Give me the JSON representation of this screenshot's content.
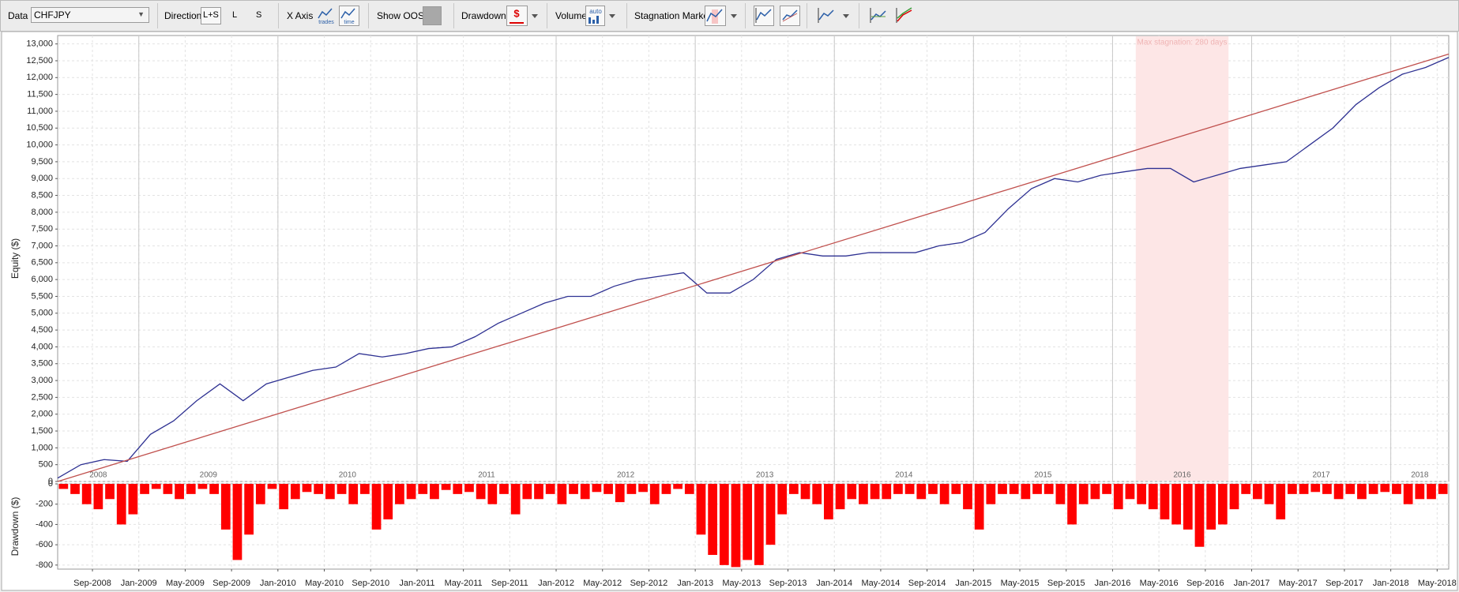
{
  "toolbar": {
    "data_label": "Data",
    "data_value": "CHFJPY",
    "direction_label": "Direction",
    "direction_options": [
      "L+S",
      "L",
      "S"
    ],
    "x_axis_label": "X Axis",
    "x_axis_options": [
      "trades",
      "time"
    ],
    "show_oos_label": "Show OOS",
    "drawdown_label": "Drawdown",
    "drawdown_icon": "$",
    "volume_label": "Volume",
    "volume_icon": "auto",
    "stagnation_label": "Stagnation Marker"
  },
  "chart_data": [
    {
      "type": "line",
      "y_label": "Equity ($)",
      "grid": true,
      "xlim": [
        "2008-06",
        "2018-06"
      ],
      "ylim": [
        0,
        13250
      ],
      "yticks": [
        0,
        500,
        {
          "value": 1000,
          "label": "1,000"
        },
        {
          "value": 1500,
          "label": "1,500"
        },
        {
          "value": 2000,
          "label": "2,000"
        },
        {
          "value": 2500,
          "label": "2,500"
        },
        {
          "value": 3000,
          "label": "3,000"
        },
        {
          "value": 3500,
          "label": "3,500"
        },
        {
          "value": 4000,
          "label": "4,000"
        },
        {
          "value": 4500,
          "label": "4,500"
        },
        {
          "value": 5000,
          "label": "5,000"
        },
        {
          "value": 5500,
          "label": "5,500"
        },
        {
          "value": 6000,
          "label": "6,000"
        },
        {
          "value": 6500,
          "label": "6,500"
        },
        {
          "value": 7000,
          "label": "7,000"
        },
        {
          "value": 7500,
          "label": "7,500"
        },
        {
          "value": 8000,
          "label": "8,000"
        },
        {
          "value": 8500,
          "label": "8,500"
        },
        {
          "value": 9000,
          "label": "9,000"
        },
        {
          "value": 9500,
          "label": "9,500"
        },
        {
          "value": 10000,
          "label": "10,000"
        },
        {
          "value": 10500,
          "label": "10,500"
        },
        {
          "value": 11000,
          "label": "11,000"
        },
        {
          "value": 11500,
          "label": "11,500"
        },
        {
          "value": 12000,
          "label": "12,000"
        },
        {
          "value": 12500,
          "label": "12,500"
        },
        {
          "value": 13000,
          "label": "13,000"
        }
      ],
      "year_labels": [
        "2008",
        "2009",
        "2010",
        "2011",
        "2012",
        "2013",
        "2014",
        "2015",
        "2016",
        "2017",
        "2018"
      ],
      "stagnation": {
        "start": "2016-03",
        "end": "2016-11",
        "label": "Max stagnation: 280 days",
        "color": "#fde6e6"
      },
      "series": [
        {
          "color": "#2e3192",
          "x": [
            "2008-06",
            "2008-08",
            "2008-10",
            "2008-12",
            "2009-02",
            "2009-04",
            "2009-06",
            "2009-08",
            "2009-10",
            "2009-12",
            "2010-02",
            "2010-04",
            "2010-06",
            "2010-08",
            "2010-10",
            "2010-12",
            "2011-02",
            "2011-04",
            "2011-06",
            "2011-08",
            "2011-10",
            "2011-12",
            "2012-02",
            "2012-04",
            "2012-06",
            "2012-08",
            "2012-10",
            "2012-12",
            "2013-02",
            "2013-04",
            "2013-06",
            "2013-08",
            "2013-10",
            "2013-12",
            "2014-02",
            "2014-04",
            "2014-06",
            "2014-08",
            "2014-10",
            "2014-12",
            "2015-02",
            "2015-04",
            "2015-06",
            "2015-08",
            "2015-10",
            "2015-12",
            "2016-02",
            "2016-04",
            "2016-06",
            "2016-08",
            "2016-10",
            "2016-12",
            "2017-02",
            "2017-04",
            "2017-06",
            "2017-08",
            "2017-10",
            "2017-12",
            "2018-02",
            "2018-04",
            "2018-06"
          ],
          "values": [
            100,
            500,
            650,
            600,
            1400,
            1800,
            2400,
            2900,
            2400,
            2900,
            3100,
            3300,
            3400,
            3800,
            3700,
            3800,
            3950,
            4000,
            4300,
            4700,
            5000,
            5300,
            5500,
            5500,
            5800,
            6000,
            6100,
            6200,
            5600,
            5600,
            6000,
            6600,
            6800,
            6700,
            6700,
            6800,
            6800,
            6800,
            7000,
            7100,
            7400,
            8100,
            8700,
            9000,
            8900,
            9100,
            9200,
            9300,
            9300,
            8900,
            9100,
            9300,
            9400,
            9500,
            10000,
            10500,
            11200,
            11700,
            12100,
            12300,
            12600
          ]
        },
        {
          "color": "#c0504d",
          "x": [
            "2008-06",
            "2018-06"
          ],
          "values": [
            0,
            12700
          ]
        }
      ]
    },
    {
      "type": "bar",
      "y_label": "Drawdown ($)",
      "color": "#ff0000",
      "grid": true,
      "xlim": [
        "2008-06",
        "2018-06"
      ],
      "ylim": [
        -840,
        0
      ],
      "yticks": [
        0,
        -200,
        -400,
        -600,
        -800
      ],
      "xticks": [
        {
          "value": "2008-09",
          "label": "Sep-2008"
        },
        {
          "value": "2009-01",
          "label": "Jan-2009"
        },
        {
          "value": "2009-05",
          "label": "May-2009"
        },
        {
          "value": "2009-09",
          "label": "Sep-2009"
        },
        {
          "value": "2010-01",
          "label": "Jan-2010"
        },
        {
          "value": "2010-05",
          "label": "May-2010"
        },
        {
          "value": "2010-09",
          "label": "Sep-2010"
        },
        {
          "value": "2011-01",
          "label": "Jan-2011"
        },
        {
          "value": "2011-05",
          "label": "May-2011"
        },
        {
          "value": "2011-09",
          "label": "Sep-2011"
        },
        {
          "value": "2012-01",
          "label": "Jan-2012"
        },
        {
          "value": "2012-05",
          "label": "May-2012"
        },
        {
          "value": "2012-09",
          "label": "Sep-2012"
        },
        {
          "value": "2013-01",
          "label": "Jan-2013"
        },
        {
          "value": "2013-05",
          "label": "May-2013"
        },
        {
          "value": "2013-09",
          "label": "Sep-2013"
        },
        {
          "value": "2014-01",
          "label": "Jan-2014"
        },
        {
          "value": "2014-05",
          "label": "May-2014"
        },
        {
          "value": "2014-09",
          "label": "Sep-2014"
        },
        {
          "value": "2015-01",
          "label": "Jan-2015"
        },
        {
          "value": "2015-05",
          "label": "May-2015"
        },
        {
          "value": "2015-09",
          "label": "Sep-2015"
        },
        {
          "value": "2016-01",
          "label": "Jan-2016"
        },
        {
          "value": "2016-05",
          "label": "May-2016"
        },
        {
          "value": "2016-09",
          "label": "Sep-2016"
        },
        {
          "value": "2017-01",
          "label": "Jan-2017"
        },
        {
          "value": "2017-05",
          "label": "May-2017"
        },
        {
          "value": "2017-09",
          "label": "Sep-2017"
        },
        {
          "value": "2018-01",
          "label": "Jan-2018"
        },
        {
          "value": "2018-05",
          "label": "May-2018"
        }
      ],
      "x": [
        "2008-06",
        "2008-07",
        "2008-08",
        "2008-09",
        "2008-10",
        "2008-11",
        "2008-12",
        "2009-01",
        "2009-02",
        "2009-03",
        "2009-04",
        "2009-05",
        "2009-06",
        "2009-07",
        "2009-08",
        "2009-09",
        "2009-10",
        "2009-11",
        "2009-12",
        "2010-01",
        "2010-02",
        "2010-03",
        "2010-04",
        "2010-05",
        "2010-06",
        "2010-07",
        "2010-08",
        "2010-09",
        "2010-10",
        "2010-11",
        "2010-12",
        "2011-01",
        "2011-02",
        "2011-03",
        "2011-04",
        "2011-05",
        "2011-06",
        "2011-07",
        "2011-08",
        "2011-09",
        "2011-10",
        "2011-11",
        "2011-12",
        "2012-01",
        "2012-02",
        "2012-03",
        "2012-04",
        "2012-05",
        "2012-06",
        "2012-07",
        "2012-08",
        "2012-09",
        "2012-10",
        "2012-11",
        "2012-12",
        "2013-01",
        "2013-02",
        "2013-03",
        "2013-04",
        "2013-05",
        "2013-06",
        "2013-07",
        "2013-08",
        "2013-09",
        "2013-10",
        "2013-11",
        "2013-12",
        "2014-01",
        "2014-02",
        "2014-03",
        "2014-04",
        "2014-05",
        "2014-06",
        "2014-07",
        "2014-08",
        "2014-09",
        "2014-10",
        "2014-11",
        "2014-12",
        "2015-01",
        "2015-02",
        "2015-03",
        "2015-04",
        "2015-05",
        "2015-06",
        "2015-07",
        "2015-08",
        "2015-09",
        "2015-10",
        "2015-11",
        "2015-12",
        "2016-01",
        "2016-02",
        "2016-03",
        "2016-04",
        "2016-05",
        "2016-06",
        "2016-07",
        "2016-08",
        "2016-09",
        "2016-10",
        "2016-11",
        "2016-12",
        "2017-01",
        "2017-02",
        "2017-03",
        "2017-04",
        "2017-05",
        "2017-06",
        "2017-07",
        "2017-08",
        "2017-09",
        "2017-10",
        "2017-11",
        "2017-12",
        "2018-01",
        "2018-02",
        "2018-03",
        "2018-04",
        "2018-05"
      ],
      "values": [
        -50,
        -100,
        -200,
        -250,
        -150,
        -400,
        -300,
        -100,
        -50,
        -100,
        -150,
        -100,
        -50,
        -100,
        -450,
        -750,
        -500,
        -200,
        -50,
        -250,
        -150,
        -80,
        -100,
        -150,
        -100,
        -200,
        -100,
        -450,
        -350,
        -200,
        -150,
        -100,
        -150,
        -60,
        -100,
        -80,
        -150,
        -200,
        -100,
        -300,
        -150,
        -150,
        -100,
        -200,
        -100,
        -150,
        -80,
        -100,
        -180,
        -100,
        -80,
        -200,
        -100,
        -50,
        -100,
        -500,
        -700,
        -800,
        -820,
        -750,
        -800,
        -600,
        -300,
        -100,
        -150,
        -200,
        -350,
        -250,
        -150,
        -200,
        -150,
        -150,
        -100,
        -100,
        -150,
        -100,
        -200,
        -100,
        -250,
        -450,
        -200,
        -100,
        -100,
        -150,
        -100,
        -100,
        -200,
        -400,
        -200,
        -150,
        -100,
        -250,
        -150,
        -200,
        -250,
        -350,
        -400,
        -450,
        -620,
        -450,
        -400,
        -250,
        -100,
        -150,
        -200,
        -350,
        -100,
        -100,
        -80,
        -100,
        -150,
        -100,
        -150,
        -100,
        -80,
        -100,
        -200,
        -150,
        -150,
        -100
      ]
    }
  ]
}
